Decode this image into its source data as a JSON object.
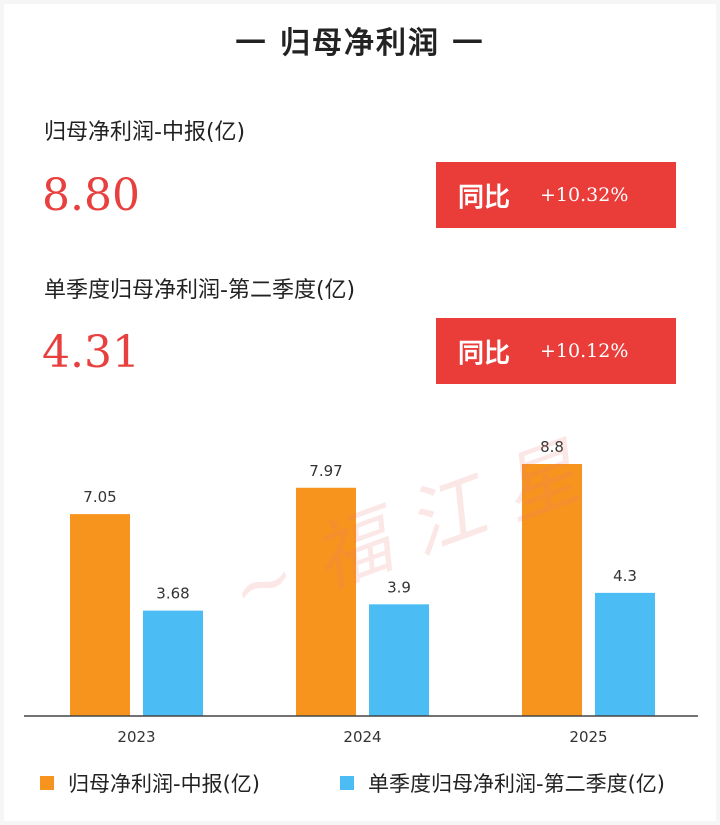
{
  "title": "一 归母净利润 一",
  "metrics": [
    {
      "label": "归母净利润-中报(亿)",
      "value": "8.80",
      "yoy_label": "同比",
      "yoy_value": "+10.32%"
    },
    {
      "label": "单季度归母净利润-第二季度(亿)",
      "value": "4.31",
      "yoy_label": "同比",
      "yoy_value": "+10.12%"
    }
  ],
  "colors": {
    "series1": "#f7941d",
    "series2": "#4cbcf5",
    "accent": "#e8403f",
    "badge": "#ea3d3a"
  },
  "chart_data": {
    "type": "bar",
    "categories": [
      "2023",
      "2024",
      "2025"
    ],
    "series": [
      {
        "name": "归母净利润-中报(亿)",
        "values": [
          7.05,
          7.97,
          8.8
        ],
        "labels": [
          "7.05",
          "7.97",
          "8.8"
        ]
      },
      {
        "name": "单季度归母净利润-第二季度(亿)",
        "values": [
          3.68,
          3.9,
          4.3
        ],
        "labels": [
          "3.68",
          "3.9",
          "4.3"
        ]
      }
    ],
    "grid": false,
    "legend_position": "bottom"
  }
}
